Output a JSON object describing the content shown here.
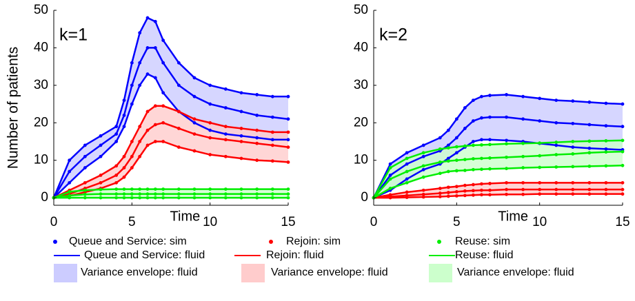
{
  "chart_data": [
    {
      "type": "line",
      "annotation": "k=1",
      "xlabel": "Time",
      "ylabel": "Number of patients",
      "x": [
        0,
        1,
        2,
        3,
        4,
        4.5,
        5,
        5.5,
        6,
        6.5,
        7,
        8,
        9,
        10,
        11,
        12,
        13,
        14,
        15
      ],
      "xlim": [
        0,
        15
      ],
      "xticks": [
        0,
        5,
        10,
        15
      ],
      "ylim": [
        -2,
        50
      ],
      "yticks": [
        0,
        10,
        20,
        30,
        40,
        50
      ],
      "series": [
        {
          "color": "#0000ff",
          "envelope_color": "#ccccff",
          "values": [
            0,
            7,
            11,
            14,
            17,
            22,
            30,
            36,
            40,
            40,
            36,
            30,
            27,
            25,
            24,
            23,
            22,
            21.5,
            21
          ],
          "upper": [
            0,
            10,
            14,
            16.5,
            19,
            26,
            36,
            44,
            48,
            47,
            42,
            36,
            32,
            30,
            29,
            28,
            27.5,
            27,
            27
          ],
          "lower": [
            0,
            4,
            8,
            11,
            15,
            19,
            25,
            30,
            33,
            32,
            28,
            23,
            20,
            18,
            17,
            16.5,
            16,
            15.5,
            15.5
          ]
        },
        {
          "color": "#ff0000",
          "envelope_color": "#ffcccc",
          "values": [
            0,
            1,
            2.5,
            4,
            6,
            8,
            11,
            15,
            18,
            19.5,
            20,
            18.5,
            17,
            16,
            15.5,
            15,
            14.5,
            14,
            13.5
          ],
          "upper": [
            0,
            2,
            4,
            6,
            8.5,
            11,
            15,
            19,
            23,
            24.5,
            24.5,
            23,
            21,
            20,
            19,
            18.5,
            18,
            17.5,
            17.5
          ],
          "lower": [
            0,
            0.5,
            1.5,
            2.5,
            4,
            5.5,
            8,
            11,
            14,
            15,
            15,
            13.5,
            12.5,
            11.5,
            11,
            10.5,
            10,
            9.8,
            9.5
          ]
        },
        {
          "color": "#00ee00",
          "envelope_color": "#ccffcc",
          "values": [
            0,
            0.6,
            0.9,
            1,
            1,
            1,
            1,
            1,
            1,
            1,
            1,
            1,
            1,
            1,
            1,
            1,
            1,
            1,
            1
          ],
          "upper": [
            0,
            1.6,
            2,
            2.2,
            2.3,
            2.3,
            2.3,
            2.3,
            2.3,
            2.3,
            2.3,
            2.3,
            2.3,
            2.3,
            2.3,
            2.3,
            2.3,
            2.3,
            2.3
          ],
          "lower": [
            0,
            0,
            0,
            0,
            0,
            0,
            0,
            0,
            0,
            0,
            0,
            0,
            0,
            0,
            0,
            0,
            0,
            0,
            0
          ]
        }
      ]
    },
    {
      "type": "line",
      "annotation": "k=2",
      "xlabel": "Time",
      "x": [
        0,
        1,
        2,
        3,
        4,
        4.5,
        5,
        5.5,
        6,
        6.5,
        7,
        8,
        9,
        10,
        11,
        12,
        13,
        14,
        15
      ],
      "xlim": [
        0,
        15
      ],
      "xticks": [
        0,
        5,
        10,
        15
      ],
      "ylim": [
        -2,
        50
      ],
      "yticks": [
        0,
        10,
        20,
        30,
        40,
        50
      ],
      "series": [
        {
          "color": "#0000ff",
          "envelope_color": "#ccccff",
          "values": [
            0,
            6,
            9,
            11,
            12.5,
            14,
            16,
            18.5,
            20.5,
            21.3,
            21.5,
            21.5,
            21,
            20.5,
            20,
            19.8,
            19.5,
            19.2,
            19
          ],
          "upper": [
            0,
            9,
            12,
            14,
            16,
            18,
            21,
            24,
            26,
            27,
            27.3,
            27.5,
            27,
            26.5,
            26,
            25.8,
            25.5,
            25.2,
            25
          ],
          "lower": [
            0,
            2,
            5,
            7.5,
            9,
            10.5,
            12,
            13.5,
            15,
            15.5,
            15.5,
            15.3,
            15,
            14.5,
            14,
            13.5,
            13.2,
            13,
            12.8
          ]
        },
        {
          "color": "#ff0000",
          "envelope_color": "#ffcccc",
          "values": [
            0,
            0.3,
            0.6,
            0.9,
            1.2,
            1.4,
            1.6,
            1.8,
            1.9,
            2,
            2,
            2.2,
            2.2,
            2.2,
            2.2,
            2.2,
            2.2,
            2.2,
            2.2
          ],
          "upper": [
            0,
            0.8,
            1.5,
            2,
            2.5,
            2.8,
            3,
            3.3,
            3.5,
            3.7,
            3.8,
            4,
            4,
            4,
            4,
            4,
            4,
            4,
            4
          ],
          "lower": [
            0,
            0,
            0.1,
            0.2,
            0.3,
            0.4,
            0.5,
            0.6,
            0.7,
            0.8,
            0.8,
            0.9,
            0.9,
            1,
            1,
            1,
            1,
            1,
            1
          ]
        },
        {
          "color": "#00ee00",
          "envelope_color": "#ccffcc",
          "values": [
            0,
            5,
            7,
            8.5,
            9.5,
            9.8,
            10,
            10.2,
            10.4,
            10.5,
            10.6,
            10.8,
            11,
            11.2,
            11.5,
            11.7,
            12,
            12.2,
            12.3
          ],
          "upper": [
            0,
            8,
            10.5,
            12,
            13,
            13.3,
            13.6,
            13.8,
            14,
            14.1,
            14.2,
            14.4,
            14.5,
            14.6,
            14.8,
            15,
            15.1,
            15.2,
            15.3
          ],
          "lower": [
            0,
            2.5,
            4,
            5.5,
            6.5,
            7,
            7.2,
            7.3,
            7.5,
            7.6,
            7.7,
            7.8,
            8,
            8.1,
            8.2,
            8.3,
            8.4,
            8.5,
            8.6
          ]
        }
      ]
    }
  ],
  "legend": [
    {
      "label": "Queue and Service: sim",
      "color": "#0000ff",
      "kind": "dot"
    },
    {
      "label": "Rejoin: sim",
      "color": "#ff0000",
      "kind": "dot"
    },
    {
      "label": "Reuse: sim",
      "color": "#00ee00",
      "kind": "dot"
    },
    {
      "label": "Queue and Service: fluid",
      "color": "#0000ff",
      "kind": "line"
    },
    {
      "label": "Rejoin: fluid",
      "color": "#ff0000",
      "kind": "line"
    },
    {
      "label": "Reuse: fluid",
      "color": "#00ee00",
      "kind": "line"
    },
    {
      "label": "Variance envelope: fluid",
      "color": "#ccccff",
      "kind": "patch"
    },
    {
      "label": "Variance envelope: fluid",
      "color": "#ffcccc",
      "kind": "patch"
    },
    {
      "label": "Variance envelope: fluid",
      "color": "#ccffcc",
      "kind": "patch"
    }
  ]
}
